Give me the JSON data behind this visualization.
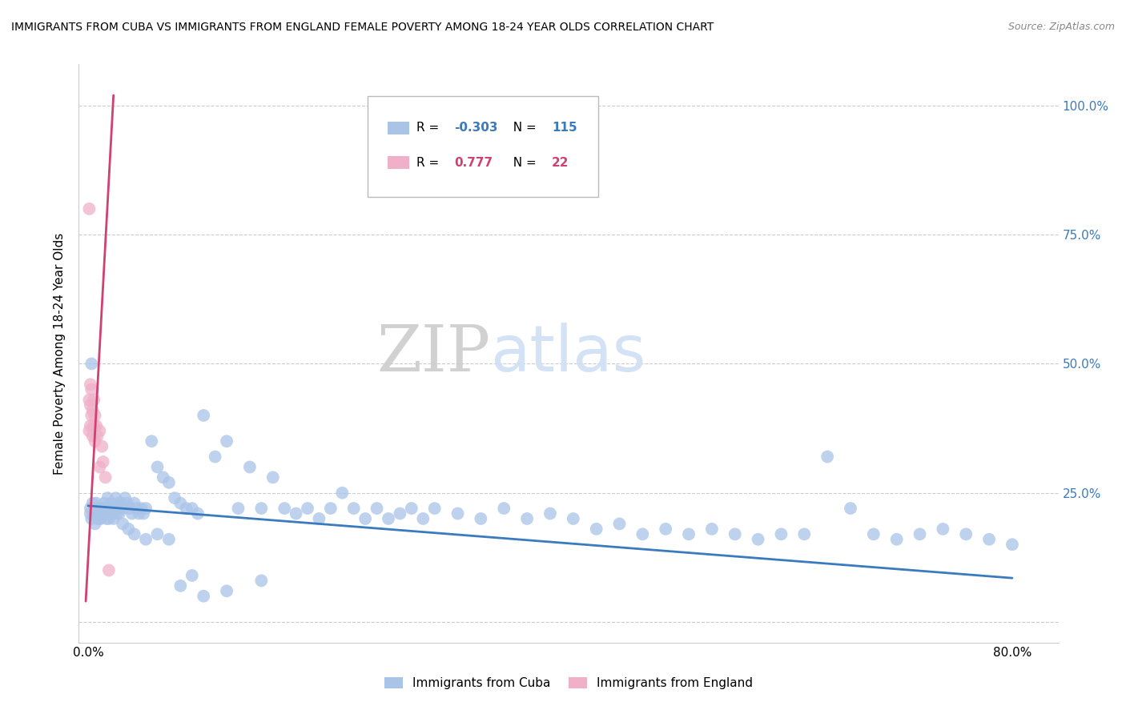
{
  "title": "IMMIGRANTS FROM CUBA VS IMMIGRANTS FROM ENGLAND FEMALE POVERTY AMONG 18-24 YEAR OLDS CORRELATION CHART",
  "source": "Source: ZipAtlas.com",
  "ylabel": "Female Poverty Among 18-24 Year Olds",
  "xlim": [
    -0.008,
    0.84
  ],
  "ylim": [
    -0.04,
    1.08
  ],
  "cuba_color": "#aac4e8",
  "england_color": "#f0b0c8",
  "cuba_line_color": "#3a7abf",
  "england_line_color": "#d04070",
  "legend_cuba_r": "-0.303",
  "legend_cuba_n": "115",
  "legend_england_r": "0.777",
  "legend_england_n": "22",
  "watermark_zip": "ZIP",
  "watermark_atlas": "atlas",
  "watermark_color": "#d0dff5",
  "cuba_scatter_x": [
    0.002,
    0.003,
    0.005,
    0.006,
    0.007,
    0.008,
    0.009,
    0.01,
    0.011,
    0.012,
    0.013,
    0.014,
    0.015,
    0.016,
    0.017,
    0.018,
    0.019,
    0.02,
    0.021,
    0.022,
    0.023,
    0.024,
    0.025,
    0.026,
    0.027,
    0.028,
    0.029,
    0.03,
    0.032,
    0.034,
    0.036,
    0.038,
    0.04,
    0.042,
    0.044,
    0.046,
    0.048,
    0.05,
    0.055,
    0.06,
    0.065,
    0.07,
    0.075,
    0.08,
    0.085,
    0.09,
    0.095,
    0.1,
    0.11,
    0.12,
    0.13,
    0.14,
    0.15,
    0.16,
    0.17,
    0.18,
    0.19,
    0.2,
    0.21,
    0.22,
    0.23,
    0.24,
    0.25,
    0.26,
    0.27,
    0.28,
    0.29,
    0.3,
    0.32,
    0.34,
    0.36,
    0.38,
    0.4,
    0.42,
    0.44,
    0.46,
    0.48,
    0.5,
    0.52,
    0.54,
    0.56,
    0.58,
    0.6,
    0.62,
    0.64,
    0.66,
    0.68,
    0.7,
    0.72,
    0.74,
    0.76,
    0.78,
    0.8,
    0.002,
    0.004,
    0.006,
    0.008,
    0.01,
    0.012,
    0.015,
    0.018,
    0.02,
    0.025,
    0.03,
    0.035,
    0.04,
    0.05,
    0.06,
    0.07,
    0.08,
    0.09,
    0.1,
    0.12,
    0.15,
    0.003
  ],
  "cuba_scatter_y": [
    0.22,
    0.2,
    0.21,
    0.19,
    0.23,
    0.2,
    0.22,
    0.21,
    0.2,
    0.22,
    0.21,
    0.23,
    0.22,
    0.2,
    0.24,
    0.22,
    0.21,
    0.23,
    0.22,
    0.2,
    0.22,
    0.24,
    0.22,
    0.23,
    0.21,
    0.22,
    0.23,
    0.22,
    0.24,
    0.23,
    0.22,
    0.21,
    0.23,
    0.22,
    0.21,
    0.22,
    0.21,
    0.22,
    0.35,
    0.3,
    0.28,
    0.27,
    0.24,
    0.23,
    0.22,
    0.22,
    0.21,
    0.4,
    0.32,
    0.35,
    0.22,
    0.3,
    0.22,
    0.28,
    0.22,
    0.21,
    0.22,
    0.2,
    0.22,
    0.25,
    0.22,
    0.2,
    0.22,
    0.2,
    0.21,
    0.22,
    0.2,
    0.22,
    0.21,
    0.2,
    0.22,
    0.2,
    0.21,
    0.2,
    0.18,
    0.19,
    0.17,
    0.18,
    0.17,
    0.18,
    0.17,
    0.16,
    0.17,
    0.17,
    0.32,
    0.22,
    0.17,
    0.16,
    0.17,
    0.18,
    0.17,
    0.16,
    0.15,
    0.21,
    0.23,
    0.22,
    0.21,
    0.2,
    0.22,
    0.21,
    0.2,
    0.22,
    0.21,
    0.19,
    0.18,
    0.17,
    0.16,
    0.17,
    0.16,
    0.07,
    0.09,
    0.05,
    0.06,
    0.08,
    0.5
  ],
  "england_scatter_x": [
    0.001,
    0.001,
    0.001,
    0.002,
    0.002,
    0.002,
    0.003,
    0.003,
    0.004,
    0.004,
    0.005,
    0.005,
    0.006,
    0.006,
    0.007,
    0.008,
    0.01,
    0.01,
    0.012,
    0.013,
    0.015,
    0.018
  ],
  "england_scatter_y": [
    0.8,
    0.43,
    0.37,
    0.46,
    0.42,
    0.38,
    0.45,
    0.4,
    0.41,
    0.36,
    0.43,
    0.38,
    0.4,
    0.35,
    0.38,
    0.36,
    0.37,
    0.3,
    0.34,
    0.31,
    0.28,
    0.1
  ],
  "cuba_trend_x": [
    0.0,
    0.8
  ],
  "cuba_trend_y": [
    0.225,
    0.085
  ],
  "england_trend_x": [
    -0.002,
    0.022
  ],
  "england_trend_y": [
    0.04,
    1.02
  ]
}
